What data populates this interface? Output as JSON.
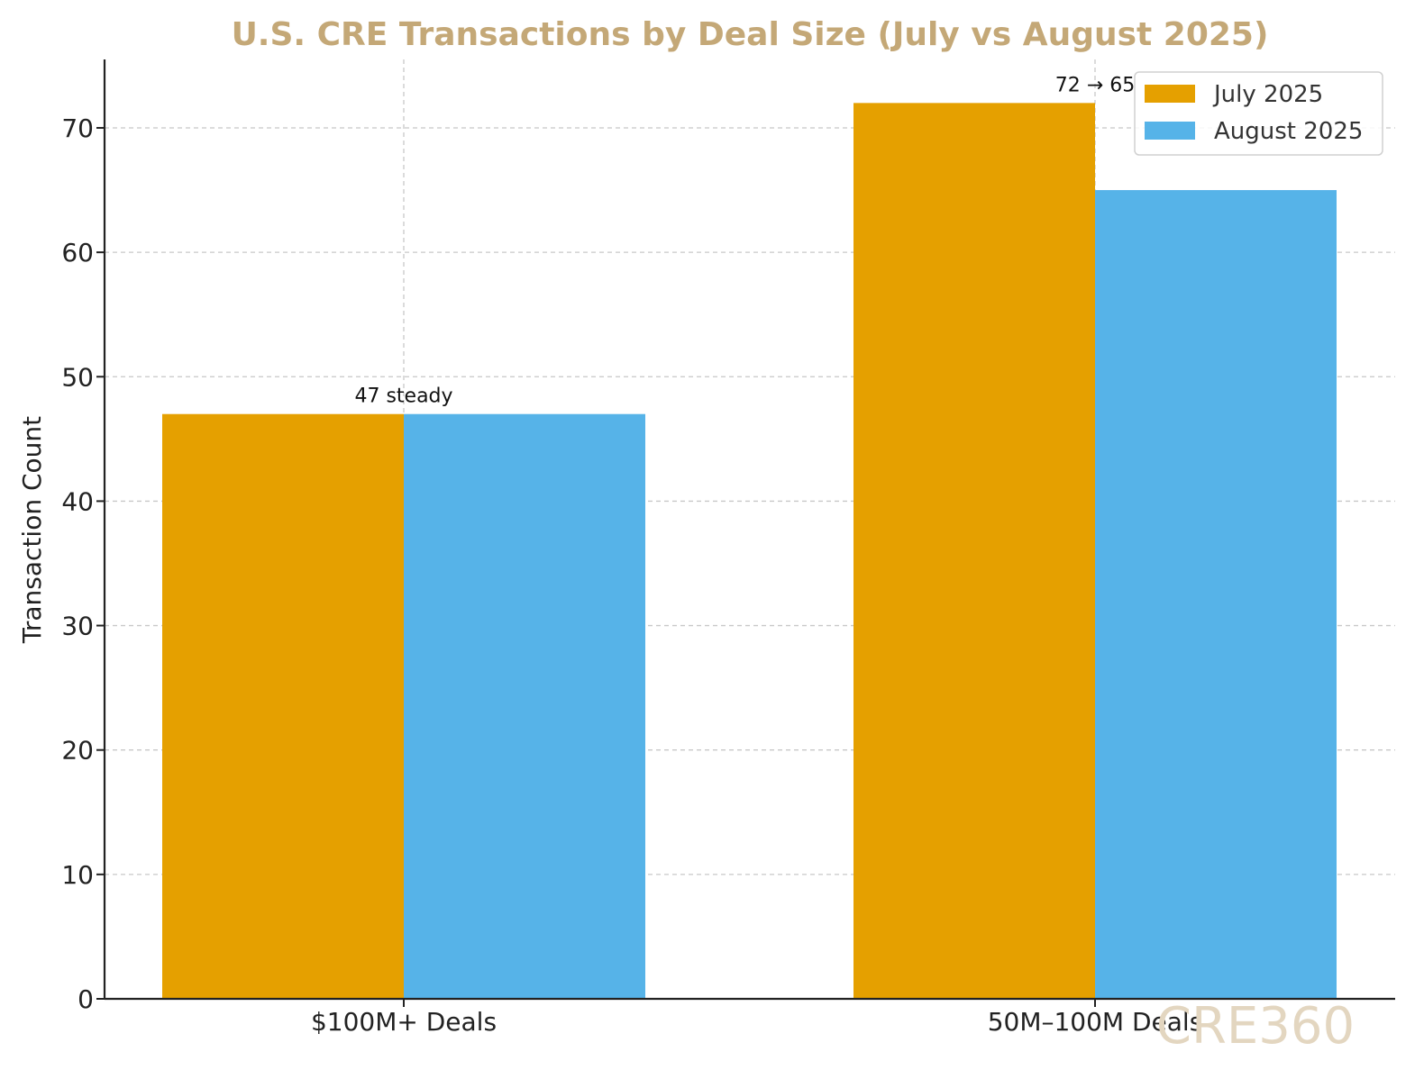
{
  "chart_data": {
    "type": "bar",
    "title": "U.S. CRE Transactions by Deal Size (July vs August 2025)",
    "xlabel": "",
    "ylabel": "Transaction Count",
    "categories": [
      "$100M+ Deals",
      "50M–100M Deals"
    ],
    "series": [
      {
        "name": "July 2025",
        "values": [
          47,
          72
        ],
        "color": "#E5A000"
      },
      {
        "name": "August 2025",
        "values": [
          47,
          65
        ],
        "color": "#56B3E8"
      }
    ],
    "ylim": [
      0,
      75.5
    ],
    "yticks": [
      0,
      10,
      20,
      30,
      40,
      50,
      60,
      70
    ],
    "annotations": [
      "47 steady",
      "72 → 65"
    ],
    "grid": true,
    "legend_position": "top-right",
    "title_color": "#C4A877"
  },
  "watermark": {
    "text": "CRE360",
    "color": "#E3D6C0"
  }
}
